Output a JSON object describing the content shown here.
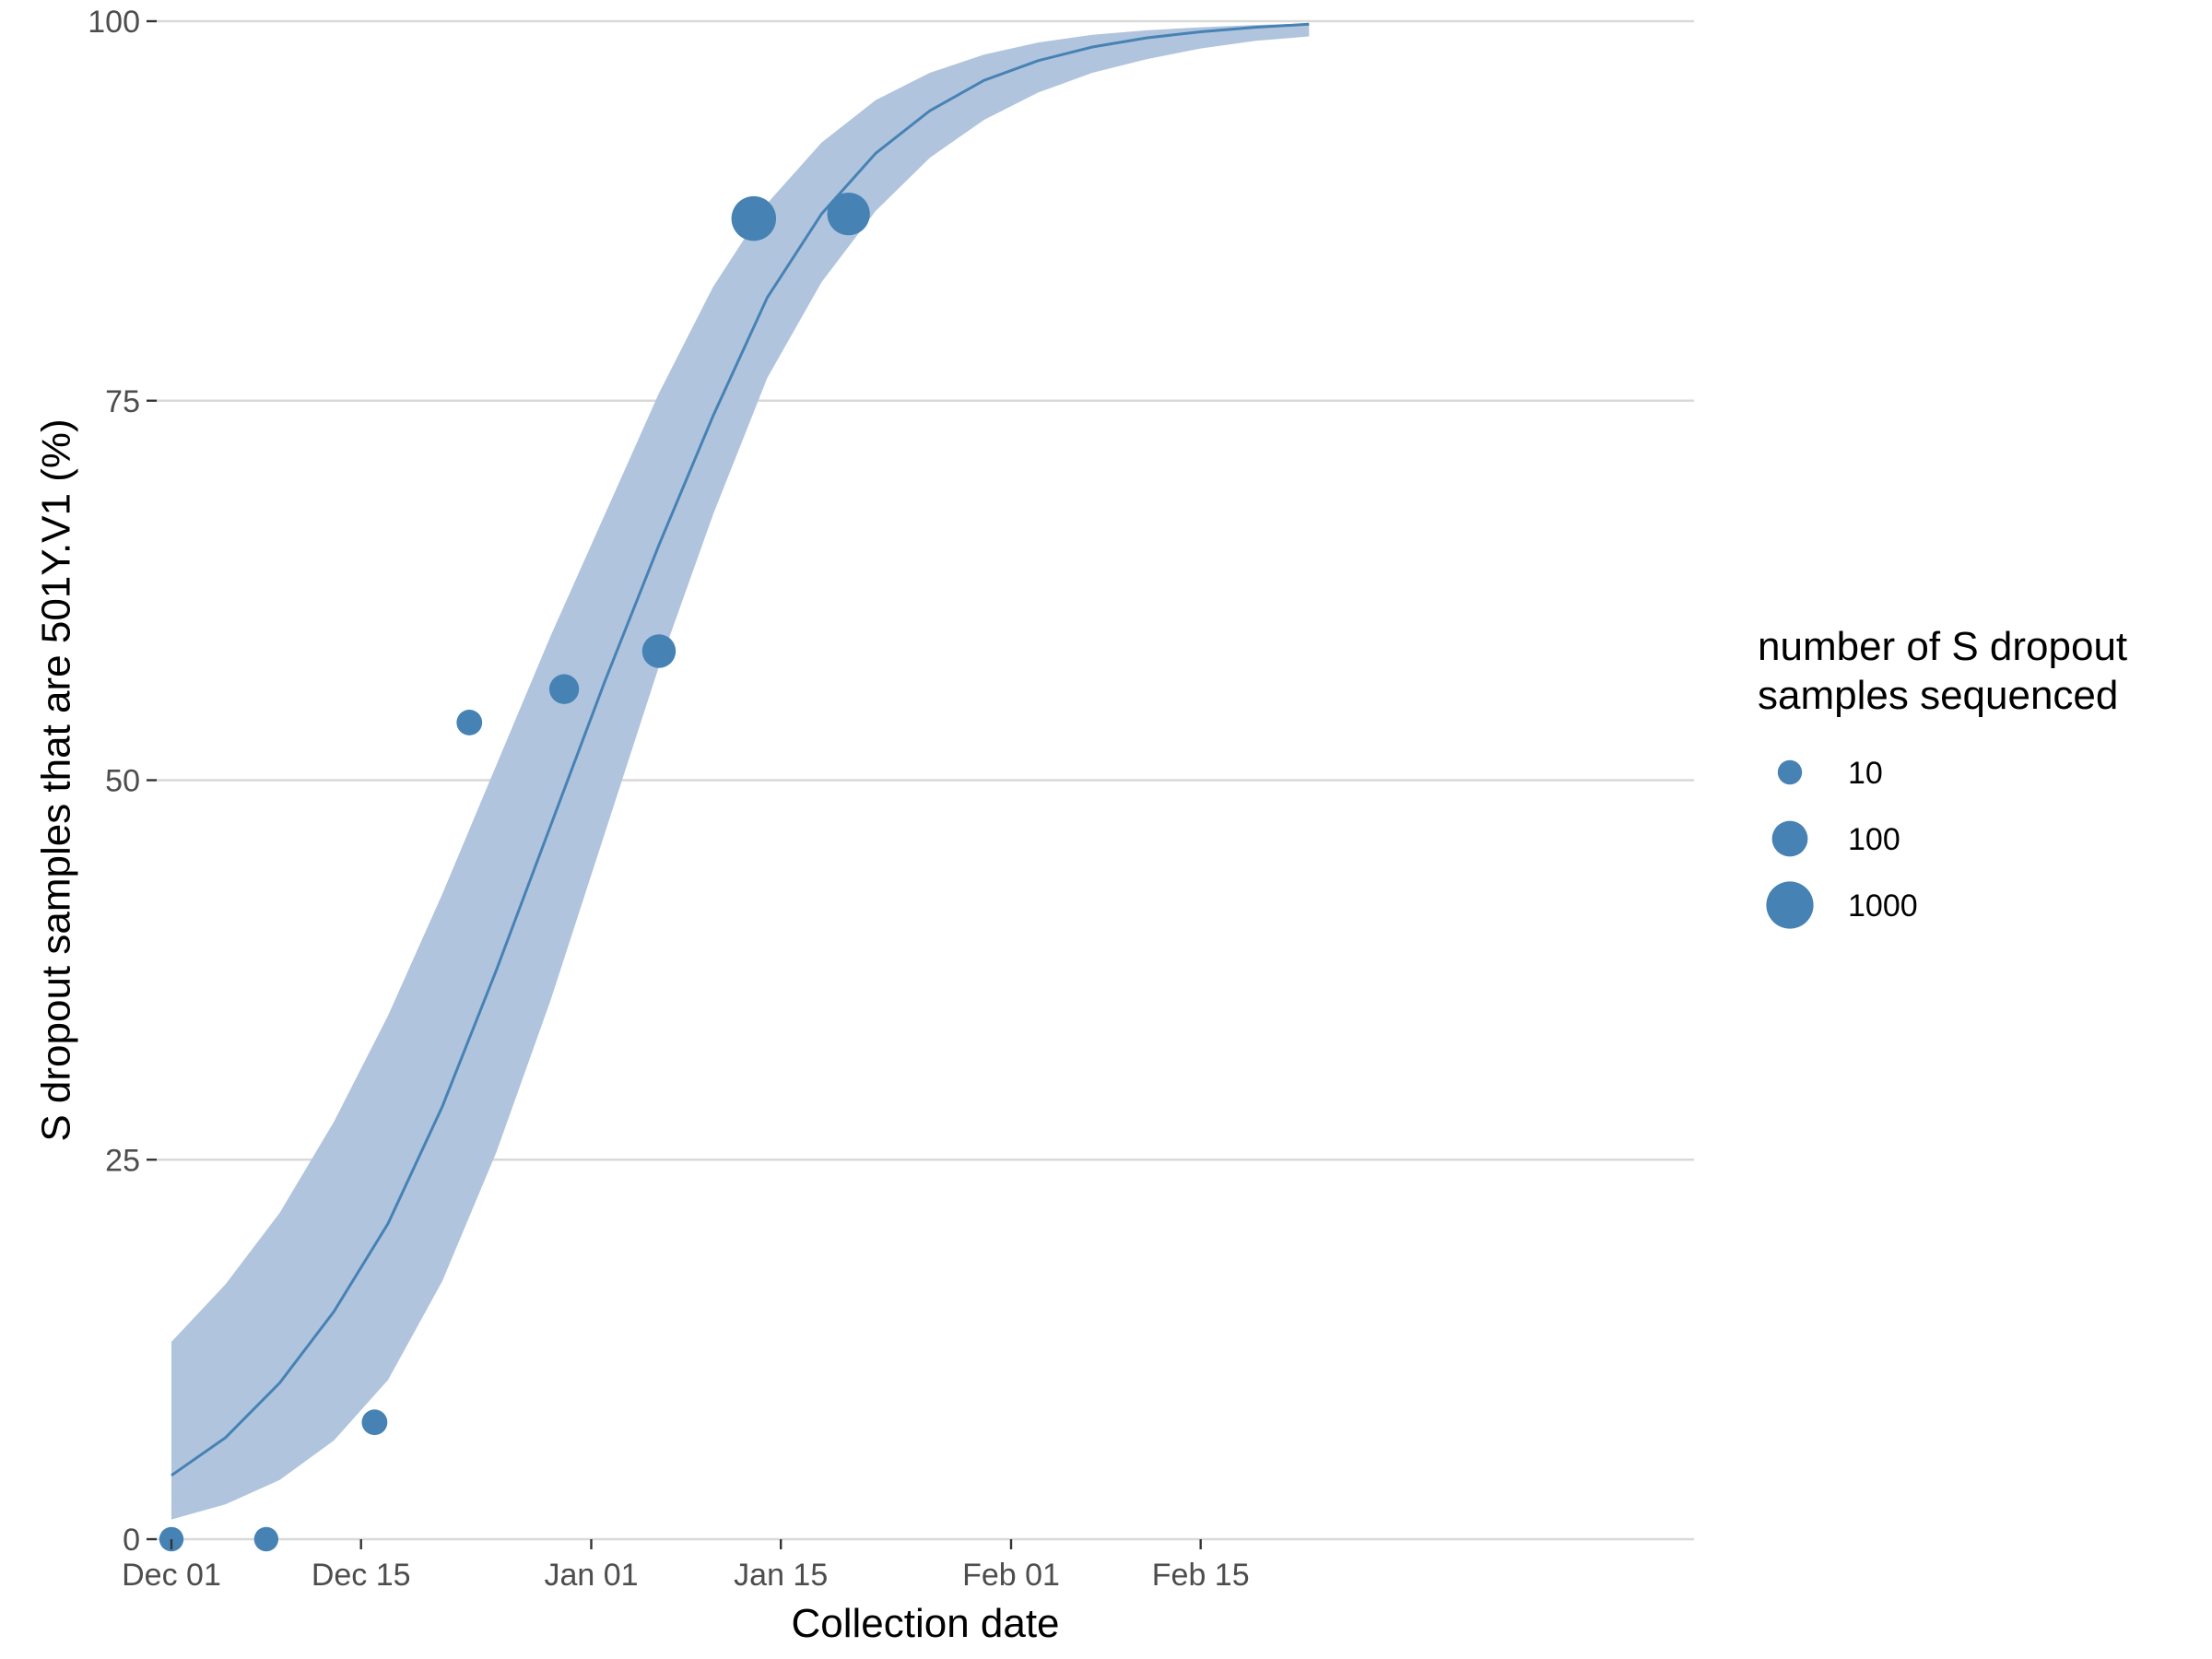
{
  "chart_data": {
    "type": "scatter",
    "title": "",
    "xlabel": "Collection date",
    "ylabel": "S dropout samples that are 501Y.V1 (%)",
    "xlim": [
      "2020-12-01",
      "2021-02-23"
    ],
    "ylim": [
      0,
      100
    ],
    "x_ticks": [
      {
        "date": "2020-12-01",
        "label": "Dec 01"
      },
      {
        "date": "2020-12-15",
        "label": "Dec 15"
      },
      {
        "date": "2021-01-01",
        "label": "Jan 01"
      },
      {
        "date": "2021-01-15",
        "label": "Jan 15"
      },
      {
        "date": "2021-02-01",
        "label": "Feb 01"
      },
      {
        "date": "2021-02-15",
        "label": "Feb 15"
      }
    ],
    "y_ticks": [
      {
        "value": 0,
        "label": "0"
      },
      {
        "value": 25,
        "label": "25"
      },
      {
        "value": 50,
        "label": "50"
      },
      {
        "value": 75,
        "label": "75"
      },
      {
        "value": 100,
        "label": "100"
      }
    ],
    "grid": "horizontal major lines only",
    "colors": {
      "points": "#4682b4",
      "line": "#4682b4",
      "band": "#b0c4de",
      "grid": "#d9d9d9"
    },
    "points": [
      {
        "date": "2020-12-01",
        "y": 0.0,
        "n": 10
      },
      {
        "date": "2020-12-08",
        "y": 0.0,
        "n": 10
      },
      {
        "date": "2020-12-16",
        "y": 7.7,
        "n": 13
      },
      {
        "date": "2020-12-23",
        "y": 53.8,
        "n": 13
      },
      {
        "date": "2020-12-30",
        "y": 56.0,
        "n": 30
      },
      {
        "date": "2021-01-06",
        "y": 58.5,
        "n": 65
      },
      {
        "date": "2021-01-13",
        "y": 87.0,
        "n": 600
      },
      {
        "date": "2021-01-20",
        "y": 87.3,
        "n": 400
      }
    ],
    "fit_line": [
      {
        "date": "2020-12-01",
        "y": 4.2
      },
      {
        "date": "2020-12-05",
        "y": 6.7
      },
      {
        "date": "2020-12-09",
        "y": 10.3
      },
      {
        "date": "2020-12-13",
        "y": 15.0
      },
      {
        "date": "2020-12-17",
        "y": 20.8
      },
      {
        "date": "2020-12-21",
        "y": 28.5
      },
      {
        "date": "2020-12-25",
        "y": 37.5
      },
      {
        "date": "2020-12-29",
        "y": 47.0
      },
      {
        "date": "2021-01-02",
        "y": 56.5
      },
      {
        "date": "2021-01-06",
        "y": 65.5
      },
      {
        "date": "2021-01-10",
        "y": 74.0
      },
      {
        "date": "2021-01-14",
        "y": 81.8
      },
      {
        "date": "2021-01-18",
        "y": 87.3
      },
      {
        "date": "2021-01-22",
        "y": 91.3
      },
      {
        "date": "2021-01-26",
        "y": 94.1
      },
      {
        "date": "2021-01-30",
        "y": 96.1
      },
      {
        "date": "2021-02-03",
        "y": 97.4
      },
      {
        "date": "2021-02-07",
        "y": 98.3
      },
      {
        "date": "2021-02-11",
        "y": 98.9
      },
      {
        "date": "2021-02-15",
        "y": 99.3
      },
      {
        "date": "2021-02-19",
        "y": 99.6
      },
      {
        "date": "2021-02-23",
        "y": 99.8
      }
    ],
    "ci_lower": [
      {
        "date": "2020-12-01",
        "y": 1.3
      },
      {
        "date": "2020-12-05",
        "y": 2.3
      },
      {
        "date": "2020-12-09",
        "y": 3.9
      },
      {
        "date": "2020-12-13",
        "y": 6.5
      },
      {
        "date": "2020-12-17",
        "y": 10.5
      },
      {
        "date": "2020-12-21",
        "y": 17.0
      },
      {
        "date": "2020-12-25",
        "y": 25.5
      },
      {
        "date": "2020-12-29",
        "y": 35.5
      },
      {
        "date": "2021-01-02",
        "y": 46.5
      },
      {
        "date": "2021-01-06",
        "y": 57.5
      },
      {
        "date": "2021-01-10",
        "y": 67.5
      },
      {
        "date": "2021-01-14",
        "y": 76.5
      },
      {
        "date": "2021-01-18",
        "y": 82.8
      },
      {
        "date": "2021-01-22",
        "y": 87.5
      },
      {
        "date": "2021-01-26",
        "y": 91.0
      },
      {
        "date": "2021-01-30",
        "y": 93.5
      },
      {
        "date": "2021-02-03",
        "y": 95.3
      },
      {
        "date": "2021-02-07",
        "y": 96.6
      },
      {
        "date": "2021-02-11",
        "y": 97.5
      },
      {
        "date": "2021-02-15",
        "y": 98.2
      },
      {
        "date": "2021-02-19",
        "y": 98.7
      },
      {
        "date": "2021-02-23",
        "y": 99.0
      }
    ],
    "ci_upper": [
      {
        "date": "2020-12-01",
        "y": 13.0
      },
      {
        "date": "2020-12-05",
        "y": 16.8
      },
      {
        "date": "2020-12-09",
        "y": 21.5
      },
      {
        "date": "2020-12-13",
        "y": 27.5
      },
      {
        "date": "2020-12-17",
        "y": 34.5
      },
      {
        "date": "2020-12-21",
        "y": 42.5
      },
      {
        "date": "2020-12-25",
        "y": 51.0
      },
      {
        "date": "2020-12-29",
        "y": 59.5
      },
      {
        "date": "2021-01-02",
        "y": 67.5
      },
      {
        "date": "2021-01-06",
        "y": 75.5
      },
      {
        "date": "2021-01-10",
        "y": 82.5
      },
      {
        "date": "2021-01-14",
        "y": 88.0
      },
      {
        "date": "2021-01-18",
        "y": 92.0
      },
      {
        "date": "2021-01-22",
        "y": 94.8
      },
      {
        "date": "2021-01-26",
        "y": 96.6
      },
      {
        "date": "2021-01-30",
        "y": 97.8
      },
      {
        "date": "2021-02-03",
        "y": 98.6
      },
      {
        "date": "2021-02-07",
        "y": 99.1
      },
      {
        "date": "2021-02-11",
        "y": 99.4
      },
      {
        "date": "2021-02-15",
        "y": 99.6
      },
      {
        "date": "2021-02-19",
        "y": 99.75
      },
      {
        "date": "2021-02-23",
        "y": 99.85
      }
    ],
    "legend": {
      "title_lines": [
        "number of S dropout",
        "samples sequenced"
      ],
      "placement": "right",
      "entries": [
        {
          "label": "10",
          "n": 10
        },
        {
          "label": "100",
          "n": 100
        },
        {
          "label": "1000",
          "n": 1000
        }
      ]
    }
  }
}
